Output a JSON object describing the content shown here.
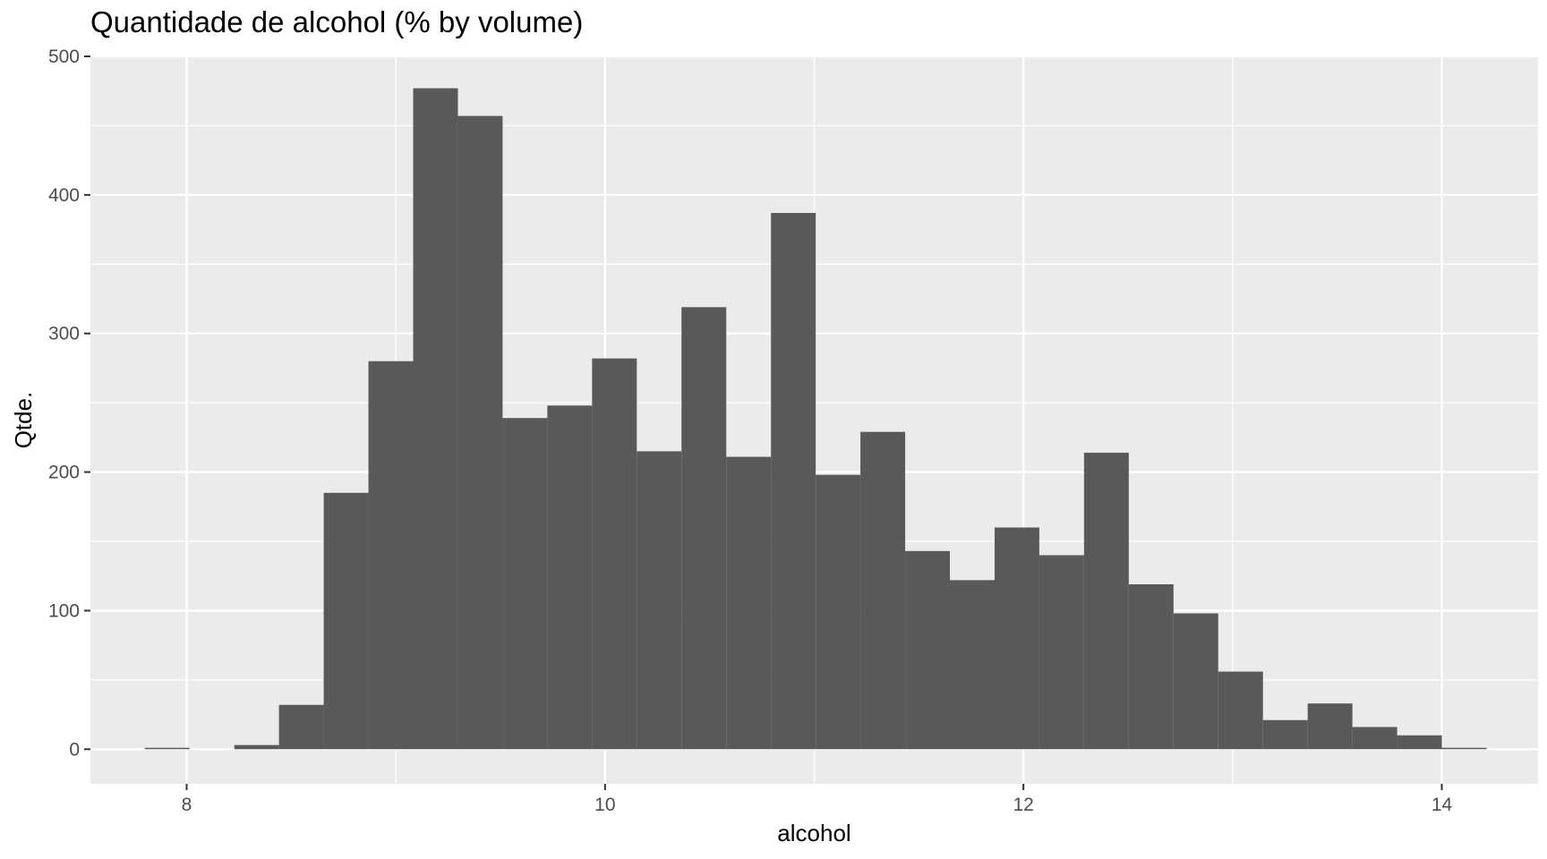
{
  "chart_data": {
    "type": "bar",
    "title": "Quantidade de alcohol (% by volume)",
    "xlabel": "alcohol",
    "ylabel": "Qtde.",
    "xlim": [
      7.54,
      14.46
    ],
    "ylim": [
      -25,
      500
    ],
    "x_ticks": [
      8,
      10,
      12,
      14
    ],
    "y_ticks": [
      0,
      100,
      200,
      300,
      400,
      500
    ],
    "bin_width": 0.2138,
    "bins": [
      {
        "x0": 7.8,
        "x1": 8.0138,
        "count": 1
      },
      {
        "x0": 8.0138,
        "x1": 8.2276,
        "count": 0
      },
      {
        "x0": 8.2276,
        "x1": 8.4414,
        "count": 3
      },
      {
        "x0": 8.4414,
        "x1": 8.6552,
        "count": 32
      },
      {
        "x0": 8.6552,
        "x1": 8.869,
        "count": 185
      },
      {
        "x0": 8.869,
        "x1": 9.0828,
        "count": 280
      },
      {
        "x0": 9.0828,
        "x1": 9.2966,
        "count": 477
      },
      {
        "x0": 9.2966,
        "x1": 9.5104,
        "count": 457
      },
      {
        "x0": 9.5104,
        "x1": 9.7242,
        "count": 239
      },
      {
        "x0": 9.7242,
        "x1": 9.938,
        "count": 248
      },
      {
        "x0": 9.938,
        "x1": 10.1518,
        "count": 282
      },
      {
        "x0": 10.1518,
        "x1": 10.3656,
        "count": 215
      },
      {
        "x0": 10.3656,
        "x1": 10.5794,
        "count": 319
      },
      {
        "x0": 10.5794,
        "x1": 10.7932,
        "count": 211
      },
      {
        "x0": 10.7932,
        "x1": 11.007,
        "count": 387
      },
      {
        "x0": 11.007,
        "x1": 11.2208,
        "count": 198
      },
      {
        "x0": 11.2208,
        "x1": 11.4346,
        "count": 229
      },
      {
        "x0": 11.4346,
        "x1": 11.6484,
        "count": 143
      },
      {
        "x0": 11.6484,
        "x1": 11.8622,
        "count": 122
      },
      {
        "x0": 11.8622,
        "x1": 12.076,
        "count": 160
      },
      {
        "x0": 12.076,
        "x1": 12.2898,
        "count": 140
      },
      {
        "x0": 12.2898,
        "x1": 12.5036,
        "count": 214
      },
      {
        "x0": 12.5036,
        "x1": 12.7174,
        "count": 119
      },
      {
        "x0": 12.7174,
        "x1": 12.9312,
        "count": 98
      },
      {
        "x0": 12.9312,
        "x1": 13.145,
        "count": 56
      },
      {
        "x0": 13.145,
        "x1": 13.3588,
        "count": 21
      },
      {
        "x0": 13.3588,
        "x1": 13.5726,
        "count": 33
      },
      {
        "x0": 13.5726,
        "x1": 13.7864,
        "count": 16
      },
      {
        "x0": 13.7864,
        "x1": 14.0002,
        "count": 10
      },
      {
        "x0": 14.0002,
        "x1": 14.214,
        "count": 1
      }
    ],
    "grid": true,
    "legend": "none",
    "colors": {
      "panel_bg": "#ebebeb",
      "grid": "#ffffff",
      "bar_fill": "#595959",
      "tick_text": "#4d4d4d",
      "tick_mark": "#333333",
      "title_text": "#000000"
    }
  }
}
